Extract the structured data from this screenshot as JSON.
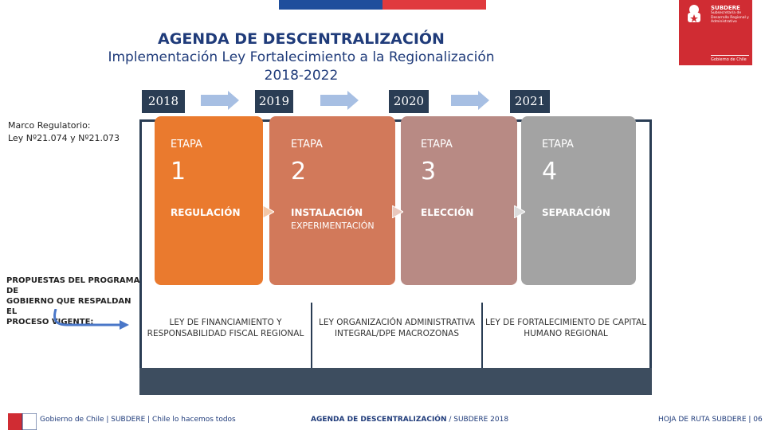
{
  "header": {
    "title": "AGENDA DE DESCENTRALIZACIÓN",
    "subtitle": "Implementación Ley Fortalecimiento a la Regionalización",
    "years_range": "2018-2022"
  },
  "logo": {
    "org": "SUBDERE",
    "org_sub": "Subsecretaría de Desarrollo Regional y Administrativo",
    "gov": "Gobierno de Chile"
  },
  "years": [
    "2018",
    "2019",
    "2020",
    "2021"
  ],
  "left": {
    "marco_line1": "Marco Regulatorio:",
    "marco_line2": "Ley Nº21.074 y Nº21.073",
    "propuestas_line1": "PROPUESTAS DEL PROGRAMA DE",
    "propuestas_line2": "GOBIERNO QUE RESPALDAN EL",
    "propuestas_line3": "PROCESO VIGENTE:"
  },
  "stages": [
    {
      "etapa": "ETAPA",
      "num": "1",
      "name": "REGULACIÓN",
      "sub": "",
      "color": "#ea7a2e"
    },
    {
      "etapa": "ETAPA",
      "num": "2",
      "name": "INSTALACIÓN",
      "sub": "EXPERIMENTACIÓN",
      "color": "#d2795a"
    },
    {
      "etapa": "ETAPA",
      "num": "3",
      "name": "ELECCIÓN",
      "sub": "",
      "color": "#b88a84"
    },
    {
      "etapa": "ETAPA",
      "num": "4",
      "name": "SEPARACIÓN",
      "sub": "",
      "color": "#a3a3a3"
    }
  ],
  "laws": [
    {
      "line1": "LEY DE FINANCIAMIENTO Y",
      "line2": "RESPONSABILIDAD FISCAL REGIONAL"
    },
    {
      "line1": "LEY ORGANIZACIÓN ADMINISTRATIVA",
      "line2": "INTEGRAL/DPE MACROZONAS"
    },
    {
      "line1": "LEY DE FORTALECIMIENTO DE CAPITAL",
      "line2": "HUMANO REGIONAL"
    }
  ],
  "footer": {
    "left": "Gobierno de Chile | SUBDERE | Chile lo hacemos todos",
    "center_bold": "AGENDA DE DESCENTRALIZACIÓN",
    "center_rest": " / SUBDERE 2018",
    "right": "HOJA DE RUTA SUBDERE | 06"
  }
}
